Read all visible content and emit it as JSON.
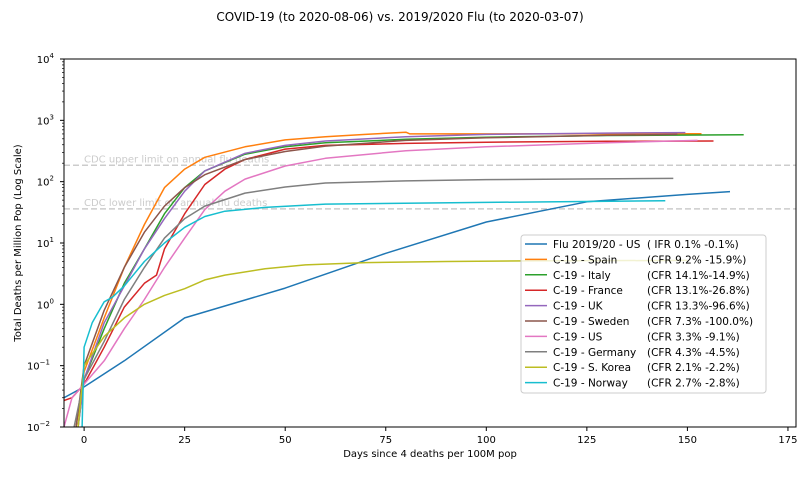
{
  "chart_data": {
    "type": "line",
    "title": "COVID-19 (to 2020-08-06) vs. 2019/2020 Flu (to 2020-03-07)",
    "xlabel": "Days since 4 deaths per 100M pop",
    "ylabel": "Total Deaths per Million Pop (Log Scale)",
    "xlim": [
      -5,
      177
    ],
    "ylim": [
      0.01,
      10000
    ],
    "yscale": "log",
    "x_ticks": [
      0,
      25,
      50,
      75,
      100,
      125,
      150,
      175
    ],
    "x_tick_labels": [
      "0",
      "25",
      "50",
      "75",
      "100",
      "125",
      "150",
      "175"
    ],
    "y_ticks": [
      0.01,
      0.1,
      1,
      10,
      100,
      1000,
      10000
    ],
    "y_tick_labels": [
      [
        "10",
        "−2"
      ],
      [
        "10",
        "−1"
      ],
      [
        "10",
        "0"
      ],
      [
        "10",
        "1"
      ],
      [
        "10",
        "2"
      ],
      [
        "10",
        "3"
      ],
      [
        "10",
        "4"
      ]
    ],
    "grid": false,
    "legend_position": "center-right",
    "reference_lines": [
      {
        "label": "CDC upper limit on annual flu deaths",
        "value": 185,
        "color": "#cccccc"
      },
      {
        "label": "CDC lower limit on annual flu deaths",
        "value": 36,
        "color": "#cccccc"
      }
    ],
    "series": [
      {
        "name": "Flu 2019/20 - US",
        "note": "( IFR 0.1%  -0.1%)",
        "color": "#1f77b4",
        "x": [
          -5,
          0,
          10,
          25,
          50,
          75,
          100,
          125,
          150,
          160.6
        ],
        "y": [
          0.03,
          0.045,
          0.12,
          0.6,
          1.84,
          6.8,
          22,
          47,
          62,
          69
        ]
      },
      {
        "name": "C-19 - Spain",
        "note": "(CFR 9.2%  -15.9%)",
        "color": "#ff7f0e",
        "x": [
          -2,
          0,
          5,
          10,
          15,
          20,
          25,
          30,
          40,
          50,
          60,
          70,
          80,
          81,
          100,
          153.5
        ],
        "y": [
          0.01,
          0.08,
          0.6,
          4,
          20,
          80,
          160,
          250,
          370,
          480,
          540,
          590,
          640,
          600,
          600,
          605
        ]
      },
      {
        "name": "C-19 - Italy",
        "note": "(CFR 14.1%-14.9%)",
        "color": "#2ca02c",
        "x": [
          -1.5,
          0,
          5,
          10,
          15,
          20,
          25,
          30,
          40,
          50,
          60,
          80,
          100,
          130,
          164
        ],
        "y": [
          0.01,
          0.06,
          0.4,
          2.2,
          8,
          30,
          80,
          150,
          280,
          370,
          430,
          490,
          530,
          565,
          580
        ]
      },
      {
        "name": "C-19 - France",
        "note": "(CFR 13.1%-26.8%)",
        "color": "#d62728",
        "x": [
          -5,
          -3,
          0,
          5,
          10,
          15,
          18,
          20,
          25,
          30,
          35,
          40,
          50,
          60,
          80,
          100,
          130,
          156.5
        ],
        "y": [
          0.027,
          0.03,
          0.05,
          0.2,
          0.9,
          2.2,
          3,
          8,
          30,
          90,
          160,
          230,
          340,
          390,
          420,
          440,
          455,
          460
        ]
      },
      {
        "name": "C-19 - UK",
        "note": "(CFR 13.3%-96.6%)",
        "color": "#9467bd",
        "x": [
          -1.5,
          0,
          5,
          10,
          15,
          20,
          25,
          30,
          40,
          50,
          60,
          80,
          100,
          130,
          149.5
        ],
        "y": [
          0.01,
          0.06,
          0.5,
          2,
          8,
          25,
          70,
          150,
          290,
          390,
          460,
          540,
          590,
          620,
          630
        ]
      },
      {
        "name": "C-19 - Sweden",
        "note": "(CFR 7.3%  -100.0%)",
        "color": "#8c564b",
        "x": [
          -2,
          0,
          5,
          10,
          15,
          20,
          25,
          30,
          40,
          50,
          60,
          80,
          100,
          130,
          147.5
        ],
        "y": [
          0.01,
          0.1,
          0.8,
          4,
          15,
          40,
          80,
          130,
          230,
          310,
          380,
          470,
          520,
          570,
          590
        ]
      },
      {
        "name": "C-19 - US",
        "note": "(CFR 3.3%  -9.1%)",
        "color": "#e377c2",
        "x": [
          -5,
          -3,
          0,
          5,
          10,
          15,
          20,
          25,
          30,
          35,
          40,
          50,
          60,
          80,
          100,
          130,
          152.5
        ],
        "y": [
          0.01,
          0.03,
          0.05,
          0.12,
          0.4,
          1.2,
          4,
          12,
          35,
          70,
          110,
          180,
          240,
          320,
          370,
          430,
          470
        ]
      },
      {
        "name": "C-19 - Germany",
        "note": "(CFR 4.3%  -4.5%)",
        "color": "#7f7f7f",
        "x": [
          -2.5,
          0,
          5,
          10,
          15,
          20,
          25,
          30,
          40,
          50,
          60,
          80,
          100,
          146.5
        ],
        "y": [
          0.01,
          0.06,
          0.25,
          1.2,
          4,
          12,
          25,
          40,
          65,
          82,
          95,
          103,
          108,
          113
        ]
      },
      {
        "name": "C-19 - S. Korea",
        "note": "(CFR 2.1%  -2.2%)",
        "color": "#bcbd22",
        "x": [
          -1.5,
          0,
          5,
          10,
          15,
          20,
          25,
          30,
          35,
          45,
          55,
          70,
          90,
          110,
          150
        ],
        "y": [
          0.01,
          0.1,
          0.3,
          0.6,
          1.0,
          1.4,
          1.8,
          2.5,
          3.0,
          3.8,
          4.4,
          4.8,
          5.0,
          5.1,
          5.2
        ]
      },
      {
        "name": "C-19 - Norway",
        "note": "(CFR 2.7%  -2.8%)",
        "color": "#17becf",
        "x": [
          -0.5,
          0,
          2,
          5,
          7,
          10,
          15,
          20,
          25,
          30,
          35,
          45,
          60,
          100,
          144.5
        ],
        "y": [
          0.01,
          0.2,
          0.5,
          1.1,
          1.3,
          2,
          5,
          10,
          18,
          27,
          33,
          38,
          43,
          46,
          49
        ]
      }
    ]
  }
}
